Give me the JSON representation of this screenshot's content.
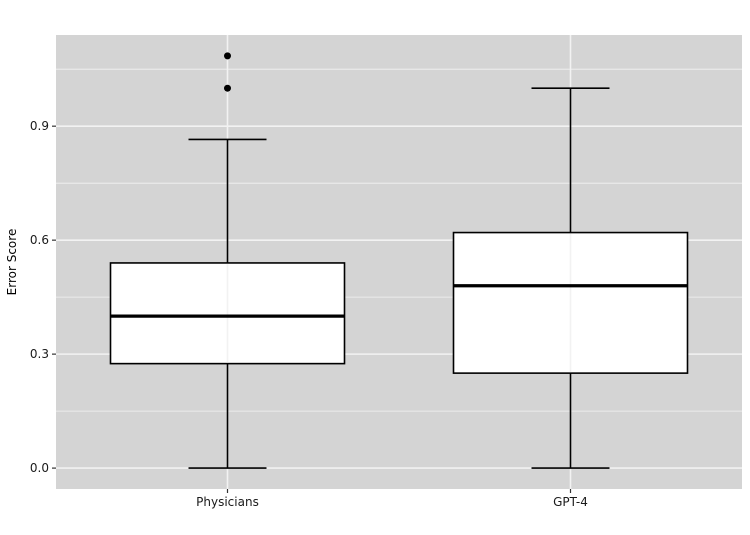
{
  "chart_data": {
    "type": "box",
    "title": "",
    "xlabel": "",
    "ylabel": "Error Score",
    "categories": [
      "Physicians",
      "GPT-4"
    ],
    "boxes": [
      {
        "name": "Physicians",
        "whisker_low": 0.0,
        "q1": 0.275,
        "median": 0.4,
        "q3": 0.54,
        "whisker_high": 0.865,
        "outliers": [
          1.0,
          1.085
        ]
      },
      {
        "name": "GPT-4",
        "whisker_low": 0.0,
        "q1": 0.25,
        "median": 0.48,
        "q3": 0.62,
        "whisker_high": 1.0,
        "outliers": []
      }
    ],
    "yticks": [
      0.0,
      0.3,
      0.6,
      0.9
    ],
    "ytick_labels": [
      "0.0",
      "0.3",
      "0.6",
      "0.9"
    ],
    "ylim": [
      -0.055,
      1.14
    ],
    "grid": true,
    "legend": "none",
    "colors": {
      "panel": "#d4d4d4",
      "grid": "#f2f2f2",
      "box_fill": "#ffffff",
      "box_stroke": "#000000"
    }
  }
}
